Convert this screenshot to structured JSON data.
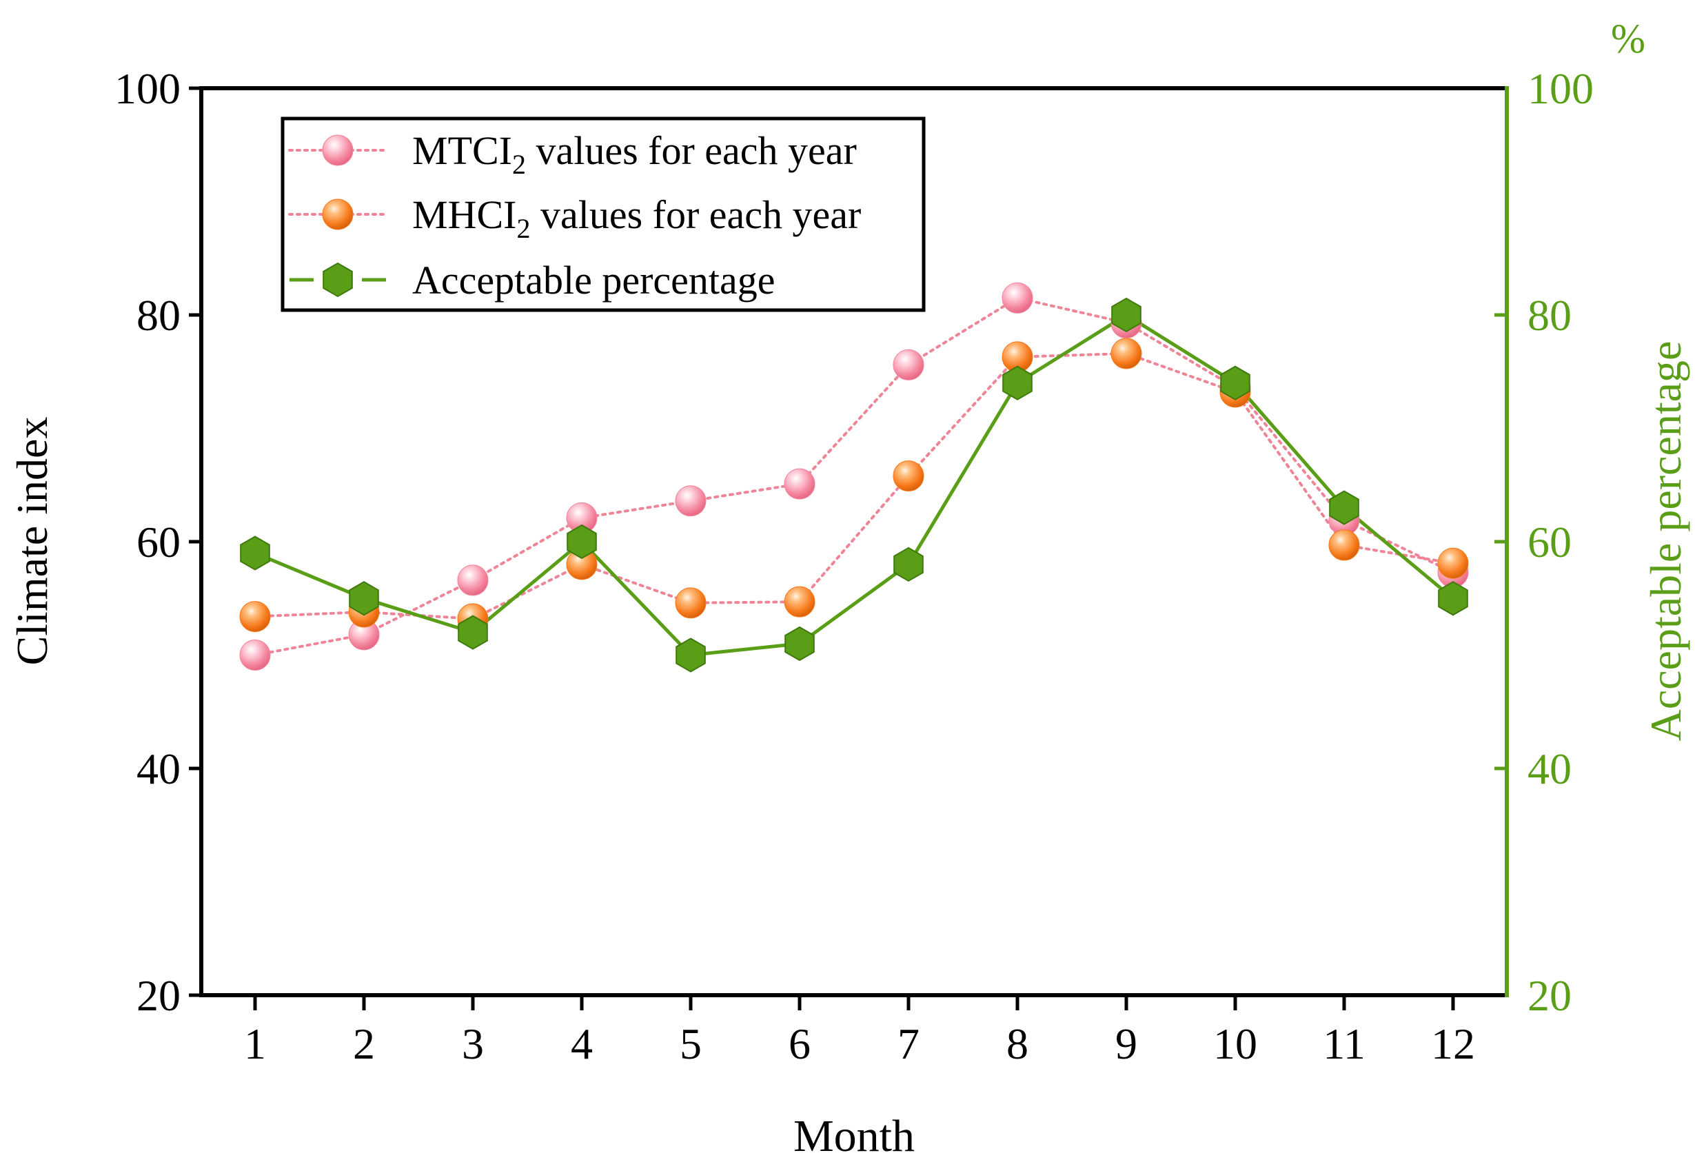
{
  "chart_data": {
    "type": "line",
    "categories": [
      "1",
      "2",
      "3",
      "4",
      "5",
      "6",
      "7",
      "8",
      "9",
      "10",
      "11",
      "12"
    ],
    "x": [
      1,
      2,
      3,
      4,
      5,
      6,
      7,
      8,
      9,
      10,
      11,
      12
    ],
    "xlabel": "Month",
    "ylabel": "Climate index",
    "y2label": "Acceptable percentage",
    "y2unit": "%",
    "ylim": [
      20,
      100
    ],
    "y2lim": [
      20,
      100
    ],
    "yticks": [
      "20",
      "40",
      "60",
      "80",
      "100"
    ],
    "y2ticks": [
      "20",
      "40",
      "60",
      "80",
      "100"
    ],
    "grid": false,
    "legend_position": "top-left",
    "series": [
      {
        "name": "MTCI2 values for each year",
        "legend_main": "MTCI",
        "legend_sub": "2",
        "legend_rest": " values for each year",
        "axis": "left",
        "marker": "sphere",
        "line_style": "dotted",
        "color": "#f4869e",
        "line_color": "#f08496",
        "values": [
          50.0,
          51.8,
          56.6,
          62.1,
          63.6,
          65.1,
          75.6,
          81.5,
          79.3,
          73.6,
          61.9,
          57.3
        ]
      },
      {
        "name": "MHCI2 values for each year",
        "legend_main": "MHCI",
        "legend_sub": "2",
        "legend_rest": " values for each year",
        "axis": "left",
        "marker": "sphere",
        "line_style": "dotted",
        "color": "#f77a1c",
        "line_color": "#f08496",
        "values": [
          53.4,
          53.8,
          53.2,
          58.0,
          54.6,
          54.7,
          65.8,
          76.3,
          76.6,
          73.2,
          59.7,
          58.1
        ]
      },
      {
        "name": "Acceptable percentage",
        "legend_main": "Acceptable percentage",
        "legend_sub": "",
        "legend_rest": "",
        "axis": "right",
        "marker": "hexagon",
        "line_style": "solid",
        "color": "#5a9e17",
        "line_color": "#5a9e17",
        "values": [
          59.0,
          55.0,
          52.0,
          60.0,
          50.0,
          51.0,
          58.0,
          74.0,
          80.0,
          74.0,
          63.0,
          55.0
        ]
      }
    ]
  }
}
